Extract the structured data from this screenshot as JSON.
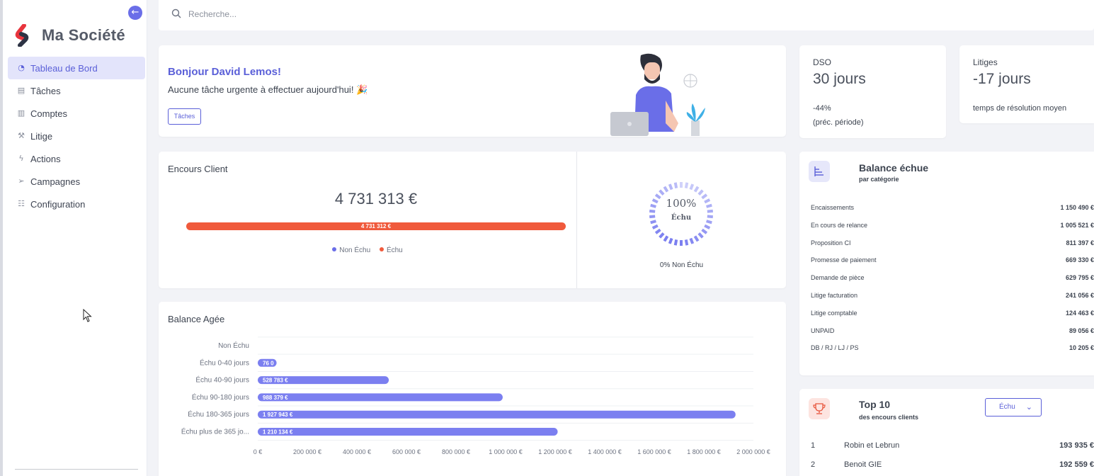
{
  "brand": {
    "name": "Ma Société"
  },
  "sidebar": {
    "items": [
      {
        "label": "Tableau de Bord",
        "icon": "dashboard-icon",
        "active": true
      },
      {
        "label": "Tâches",
        "icon": "calendar-icon",
        "active": false
      },
      {
        "label": "Comptes",
        "icon": "chart-icon",
        "active": false
      },
      {
        "label": "Litige",
        "icon": "hammer-icon",
        "active": false
      },
      {
        "label": "Actions",
        "icon": "lightning-icon",
        "active": false
      },
      {
        "label": "Campagnes",
        "icon": "send-icon",
        "active": false
      },
      {
        "label": "Configuration",
        "icon": "sliders-icon",
        "active": false
      }
    ]
  },
  "search": {
    "placeholder": "Recherche..."
  },
  "welcome": {
    "title": "Bonjour David Lemos!",
    "subtitle": "Aucune tâche urgente à effectuer aujourd'hui! 🎉",
    "button": "Tâches"
  },
  "kpis": {
    "dso": {
      "label": "DSO",
      "value": "30 jours",
      "change": "-44%",
      "note": "(préc. période)"
    },
    "litiges": {
      "label": "Litiges",
      "value": "-17 jours",
      "note": "temps de résolution moyen"
    }
  },
  "encours": {
    "title": "Encours Client",
    "total": "4 731 313 €",
    "bar_label": "4 731 312 €",
    "legend": [
      "Non Échu",
      "Échu"
    ],
    "gauge_pct": "100%",
    "gauge_label": "Échu",
    "gauge_caption": "0% Non Échu"
  },
  "colors": {
    "accent": "#5a5fd8",
    "bar": "#7b7ff0",
    "overdue": "#f05a3c",
    "not_due": "#6a6ee8"
  },
  "balance_echue": {
    "title": "Balance échue",
    "subtitle": "par catégorie",
    "rows": [
      {
        "label": "Encaissements",
        "value": "1 150 490 €"
      },
      {
        "label": "En cours de relance",
        "value": "1 005 521 €"
      },
      {
        "label": "Proposition CI",
        "value": "811 397 €"
      },
      {
        "label": "Promesse de paiement",
        "value": "669 330 €"
      },
      {
        "label": "Demande de pièce",
        "value": "629 795 €"
      },
      {
        "label": "Litige facturation",
        "value": "241 056 €"
      },
      {
        "label": "Litige comptable",
        "value": "124 463 €"
      },
      {
        "label": "UNPAID",
        "value": "89 056 €"
      },
      {
        "label": "DB / RJ / LJ / PS",
        "value": "10 205 €"
      }
    ]
  },
  "top10": {
    "title": "Top 10",
    "subtitle": "des encours clients",
    "filter": "Échu",
    "rows": [
      {
        "rank": "1",
        "name": "Robin et Lebrun",
        "amount": "193 935 €"
      },
      {
        "rank": "2",
        "name": "Benoit GIE",
        "amount": "192 559 €"
      }
    ]
  },
  "chart_data": {
    "type": "bar",
    "orientation": "horizontal",
    "title": "Balance Agée",
    "categories": [
      "Non Échu",
      "Échu 0-40 jours",
      "Échu 40-90 jours",
      "Échu 90-180 jours",
      "Échu 180-365 jours",
      "Échu plus de 365 jo..."
    ],
    "values": [
      0,
      76000,
      528783,
      988379,
      1927943,
      1210134
    ],
    "data_labels": [
      "",
      "76 0",
      "528 783 €",
      "988 379 €",
      "1 927 943 €",
      "1 210 134 €"
    ],
    "xlim": [
      0,
      2000000
    ],
    "xticks": [
      "0 €",
      "200 000 €",
      "400 000 €",
      "600 000 €",
      "800 000 €",
      "1 000 000 €",
      "1 200 000 €",
      "1 400 000 €",
      "1 600 000 €",
      "1 800 000 €",
      "2 000 000 €"
    ],
    "grid": true
  }
}
